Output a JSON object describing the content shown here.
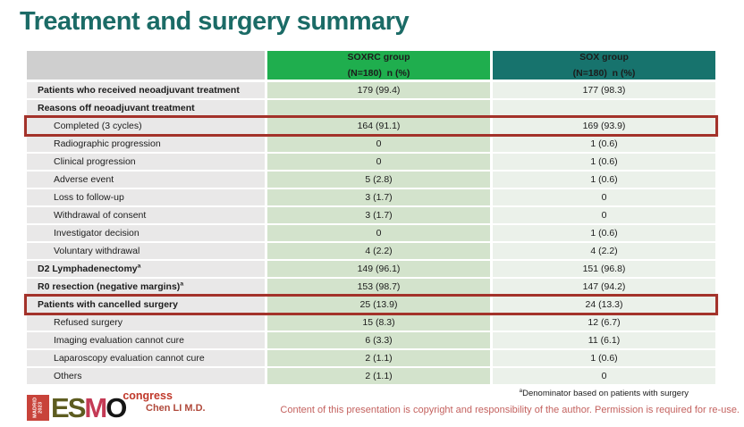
{
  "title": "Treatment and surgery summary",
  "colors": {
    "accent_green": "#1fae4e",
    "accent_teal": "#17736d",
    "title_teal": "#1b6b66",
    "highlight_red": "#a3322a",
    "presenter_red": "#b04a3c",
    "copyright_red": "#c4625f",
    "congress_red": "#c0392b"
  },
  "table": {
    "columns": [
      {
        "group": "",
        "sub": ""
      },
      {
        "group": "SOXRC group",
        "sub": "(N=180)  n (%)"
      },
      {
        "group": "SOX group",
        "sub": "(N=180)  n (%)"
      }
    ],
    "rows": [
      {
        "label": "Patients who received neoadjuvant treatment",
        "sup": "",
        "bold": true,
        "indent": false,
        "highlight": false,
        "soxrc": "179 (99.4)",
        "sox": "177 (98.3)"
      },
      {
        "label": "Reasons off neoadjuvant treatment",
        "sup": "",
        "bold": true,
        "indent": false,
        "highlight": false,
        "soxrc": "",
        "sox": ""
      },
      {
        "label": "Completed (3 cycles)",
        "sup": "",
        "bold": false,
        "indent": true,
        "highlight": true,
        "soxrc": "164 (91.1)",
        "sox": "169 (93.9)"
      },
      {
        "label": "Radiographic progression",
        "sup": "",
        "bold": false,
        "indent": true,
        "highlight": false,
        "soxrc": "0",
        "sox": "1 (0.6)"
      },
      {
        "label": "Clinical progression",
        "sup": "",
        "bold": false,
        "indent": true,
        "highlight": false,
        "soxrc": "0",
        "sox": "1 (0.6)"
      },
      {
        "label": "Adverse event",
        "sup": "",
        "bold": false,
        "indent": true,
        "highlight": false,
        "soxrc": "5 (2.8)",
        "sox": "1 (0.6)"
      },
      {
        "label": "Loss to follow-up",
        "sup": "",
        "bold": false,
        "indent": true,
        "highlight": false,
        "soxrc": "3 (1.7)",
        "sox": "0"
      },
      {
        "label": "Withdrawal of consent",
        "sup": "",
        "bold": false,
        "indent": true,
        "highlight": false,
        "soxrc": "3 (1.7)",
        "sox": "0"
      },
      {
        "label": "Investigator decision",
        "sup": "",
        "bold": false,
        "indent": true,
        "highlight": false,
        "soxrc": "0",
        "sox": "1 (0.6)"
      },
      {
        "label": "Voluntary withdrawal",
        "sup": "",
        "bold": false,
        "indent": true,
        "highlight": false,
        "soxrc": "4 (2.2)",
        "sox": "4 (2.2)"
      },
      {
        "label": "D2 Lymphadenectomy",
        "sup": "a",
        "bold": true,
        "indent": false,
        "highlight": false,
        "soxrc": "149 (96.1)",
        "sox": "151 (96.8)"
      },
      {
        "label": "R0 resection (negative margins)",
        "sup": "a",
        "bold": true,
        "indent": false,
        "highlight": false,
        "soxrc": "153 (98.7)",
        "sox": "147 (94.2)"
      },
      {
        "label": "Patients with cancelled surgery",
        "sup": "",
        "bold": true,
        "indent": false,
        "highlight": true,
        "soxrc": "25 (13.9)",
        "sox": "24 (13.3)"
      },
      {
        "label": "Refused surgery",
        "sup": "",
        "bold": false,
        "indent": true,
        "highlight": false,
        "soxrc": "15 (8.3)",
        "sox": "12 (6.7)"
      },
      {
        "label": "Imaging evaluation cannot cure",
        "sup": "",
        "bold": false,
        "indent": true,
        "highlight": false,
        "soxrc": "6 (3.3)",
        "sox": "11 (6.1)"
      },
      {
        "label": "Laparoscopy evaluation cannot cure",
        "sup": "",
        "bold": false,
        "indent": true,
        "highlight": false,
        "soxrc": "2 (1.1)",
        "sox": "1 (0.6)"
      },
      {
        "label": "Others",
        "sup": "",
        "bold": false,
        "indent": true,
        "highlight": false,
        "soxrc": "2 (1.1)",
        "sox": "0"
      }
    ]
  },
  "footer": {
    "footnote_sup": "a",
    "footnote": "Denominator based on patients with surgery",
    "presenter": "Chen LI M.D.",
    "copyright": "Content of this presentation is copyright and responsibility of the author. Permission is required for re-use.",
    "logo": {
      "city": "MADRID",
      "year": "2023",
      "letters": [
        "E",
        "S",
        "M",
        "O"
      ],
      "congress": "congress"
    }
  }
}
